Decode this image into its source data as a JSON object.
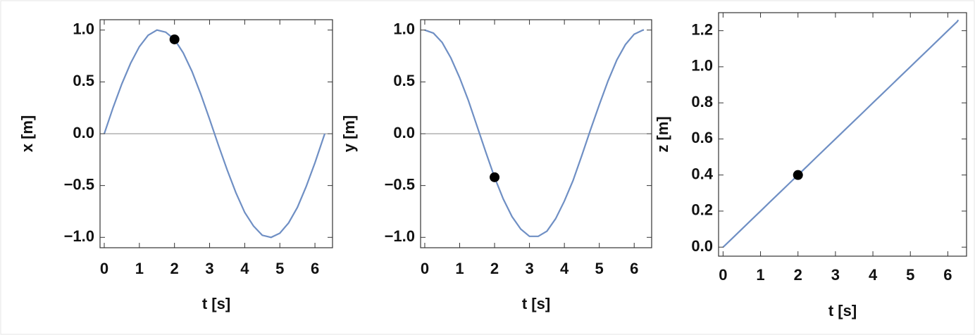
{
  "chart_data": [
    {
      "type": "line",
      "x_label": "t [s]",
      "y_label": "x [m]",
      "x": [
        0,
        0.25,
        0.5,
        0.75,
        1,
        1.25,
        1.5,
        1.75,
        2,
        2.25,
        2.5,
        2.75,
        3,
        3.25,
        3.5,
        3.75,
        4,
        4.25,
        4.5,
        4.75,
        5,
        5.25,
        5.5,
        5.75,
        6,
        6.25,
        6.28
      ],
      "values": [
        0,
        0.25,
        0.48,
        0.68,
        0.84,
        0.95,
        1.0,
        0.98,
        0.91,
        0.78,
        0.6,
        0.38,
        0.14,
        -0.11,
        -0.35,
        -0.57,
        -0.76,
        -0.89,
        -0.98,
        -1.0,
        -0.96,
        -0.86,
        -0.71,
        -0.51,
        -0.28,
        -0.03,
        0
      ],
      "color": "#6f8fc4",
      "marker": {
        "x": 2,
        "y": 0.91,
        "color": "#000000"
      },
      "zero_line": true,
      "xlim": [
        -0.12,
        6.5
      ],
      "ylim": [
        -1.1,
        1.1
      ],
      "xticks": [
        0,
        1,
        2,
        3,
        4,
        5,
        6
      ],
      "yticks": [
        {
          "value": 1,
          "label": "1.0"
        },
        {
          "value": 0.5,
          "label": "0.5"
        },
        {
          "value": 0,
          "label": "0.0"
        },
        {
          "value": -0.5,
          "label": "−0.5"
        },
        {
          "value": -1,
          "label": "−1.0"
        }
      ]
    },
    {
      "type": "line",
      "x_label": "t [s]",
      "y_label": "y [m]",
      "x": [
        0,
        0.25,
        0.5,
        0.75,
        1,
        1.25,
        1.5,
        1.75,
        2,
        2.25,
        2.5,
        2.75,
        3,
        3.25,
        3.5,
        3.75,
        4,
        4.25,
        4.5,
        4.75,
        5,
        5.25,
        5.5,
        5.75,
        6,
        6.25,
        6.28
      ],
      "values": [
        1,
        0.97,
        0.88,
        0.73,
        0.54,
        0.32,
        0.07,
        -0.18,
        -0.42,
        -0.63,
        -0.8,
        -0.92,
        -0.99,
        -0.99,
        -0.94,
        -0.82,
        -0.65,
        -0.45,
        -0.21,
        0.04,
        0.28,
        0.51,
        0.71,
        0.86,
        0.96,
        1.0,
        1.0
      ],
      "color": "#6f8fc4",
      "marker": {
        "x": 2,
        "y": -0.42,
        "color": "#000000"
      },
      "zero_line": true,
      "xlim": [
        -0.12,
        6.5
      ],
      "ylim": [
        -1.1,
        1.1
      ],
      "xticks": [
        0,
        1,
        2,
        3,
        4,
        5,
        6
      ],
      "yticks": [
        {
          "value": 1,
          "label": "1.0"
        },
        {
          "value": 0.5,
          "label": "0.5"
        },
        {
          "value": 0,
          "label": "0.0"
        },
        {
          "value": -0.5,
          "label": "−0.5"
        },
        {
          "value": -1,
          "label": "−1.0"
        }
      ]
    },
    {
      "type": "line",
      "x_label": "t [s]",
      "y_label": "z [m]",
      "x": [
        0,
        0.25,
        0.5,
        0.75,
        1,
        1.25,
        1.5,
        1.75,
        2,
        2.25,
        2.5,
        2.75,
        3,
        3.25,
        3.5,
        3.75,
        4,
        4.25,
        4.5,
        4.75,
        5,
        5.25,
        5.5,
        5.75,
        6,
        6.25,
        6.28
      ],
      "values": [
        0,
        0.05,
        0.1,
        0.15,
        0.2,
        0.25,
        0.3,
        0.35,
        0.4,
        0.45,
        0.5,
        0.55,
        0.6,
        0.65,
        0.7,
        0.75,
        0.8,
        0.85,
        0.9,
        0.95,
        1.0,
        1.05,
        1.1,
        1.15,
        1.2,
        1.25,
        1.26
      ],
      "color": "#6f8fc4",
      "marker": {
        "x": 2,
        "y": 0.4,
        "color": "#000000"
      },
      "zero_line": false,
      "xlim": [
        -0.12,
        6.5
      ],
      "ylim": [
        -0.05,
        1.3
      ],
      "xticks": [
        0,
        1,
        2,
        3,
        4,
        5,
        6
      ],
      "yticks": [
        {
          "value": 0,
          "label": "0.0"
        },
        {
          "value": 0.2,
          "label": "0.2"
        },
        {
          "value": 0.4,
          "label": "0.4"
        },
        {
          "value": 0.6,
          "label": "0.6"
        },
        {
          "value": 0.8,
          "label": "0.8"
        },
        {
          "value": 1,
          "label": "1.0"
        },
        {
          "value": 1.2,
          "label": "1.2"
        }
      ]
    }
  ]
}
